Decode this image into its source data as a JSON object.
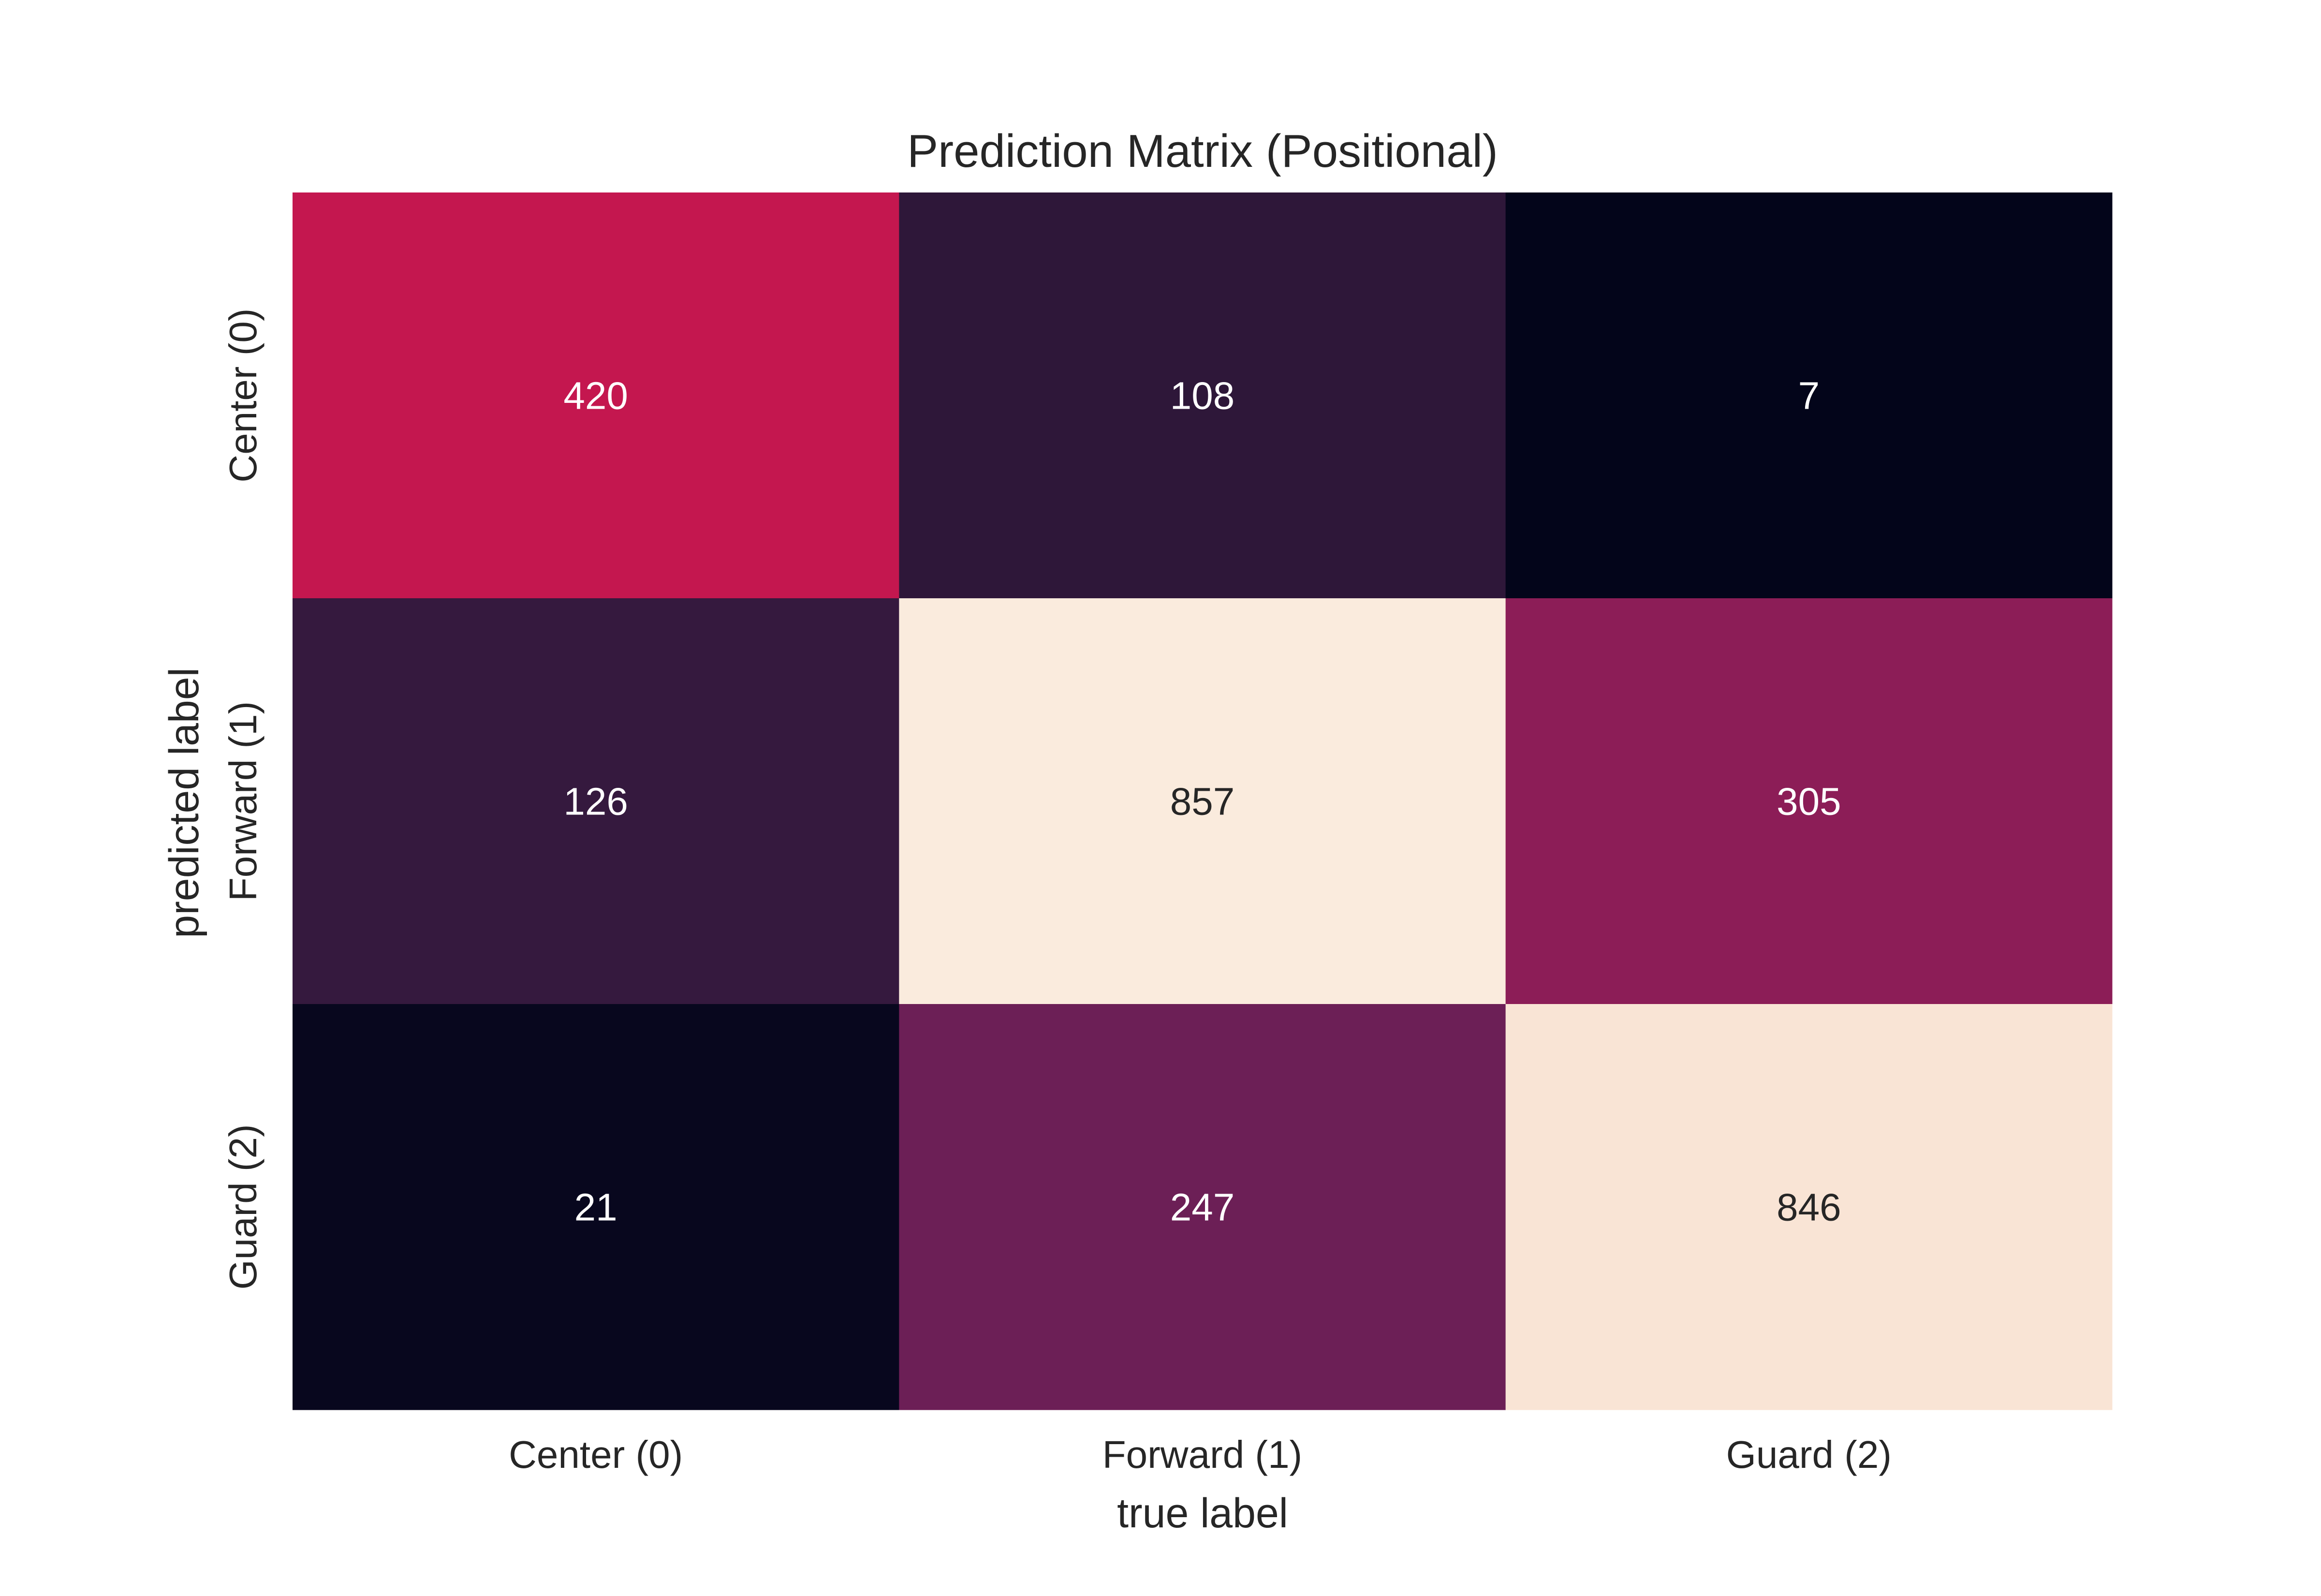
{
  "chart_data": {
    "type": "heatmap",
    "title": "Prediction Matrix (Positional)",
    "xlabel": "true label",
    "ylabel": "predicted label",
    "x_categories": [
      "Center (0)",
      "Forward (1)",
      "Guard (2)"
    ],
    "y_categories": [
      "Center (0)",
      "Forward (1)",
      "Guard (2)"
    ],
    "values": [
      [
        420,
        108,
        7
      ],
      [
        126,
        857,
        305
      ],
      [
        21,
        247,
        846
      ]
    ],
    "colorbar": false,
    "colormap": "rocket",
    "cell_colors": [
      [
        "#c4174f",
        "#2e1739",
        "#03051a"
      ],
      [
        "#35193e",
        "#faebdd",
        "#8c1d57"
      ],
      [
        "#08071e",
        "#6c1f56",
        "#f9e4d5"
      ]
    ],
    "annotation_colors": {
      "light": "#ffffff",
      "dark": "#262626"
    }
  }
}
